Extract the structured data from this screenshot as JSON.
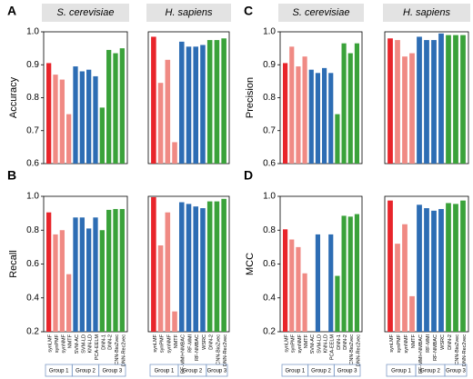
{
  "chart_data": [
    {
      "type": "bar",
      "panel": "A",
      "title": "S. cerevisiae",
      "ylabel": "Accuracy",
      "values": [
        0.905,
        0.87,
        0.855,
        0.75,
        0.895,
        0.88,
        0.885,
        0.865,
        0.77,
        0.945,
        0.935,
        0.95
      ],
      "colors": [
        "#e8252b",
        "#f08a84",
        "#f08a84",
        "#f08a84",
        "#2d6db4",
        "#2d6db4",
        "#2d6db4",
        "#2d6db4",
        "#3aa23a",
        "#3aa23a",
        "#3aa23a",
        "#3aa23a"
      ],
      "ylim": [
        0.6,
        1.0
      ],
      "yticks": [
        0.6,
        0.7,
        0.8,
        0.9,
        {
          "value": 1.0,
          "label": "1.0"
        }
      ]
    },
    {
      "type": "bar",
      "title": "H. sapiens",
      "values": [
        0.985,
        0.845,
        0.915,
        0.665,
        0.97,
        0.955,
        0.955,
        0.96,
        0.975,
        0.975,
        0.98
      ],
      "colors": [
        "#e8252b",
        "#f08a84",
        "#f08a84",
        "#f08a84",
        "#2d6db4",
        "#2d6db4",
        "#2d6db4",
        "#2d6db4",
        "#3aa23a",
        "#3aa23a",
        "#3aa23a"
      ],
      "ylim": [
        0.6,
        1.0
      ]
    },
    {
      "type": "bar",
      "panel": "C",
      "title": "S. cerevisiae",
      "ylabel": "Precision",
      "values": [
        0.905,
        0.955,
        0.895,
        0.925,
        0.885,
        0.875,
        0.89,
        0.875,
        0.75,
        0.965,
        0.935,
        0.965
      ],
      "colors": [
        "#e8252b",
        "#f08a84",
        "#f08a84",
        "#f08a84",
        "#2d6db4",
        "#2d6db4",
        "#2d6db4",
        "#2d6db4",
        "#3aa23a",
        "#3aa23a",
        "#3aa23a",
        "#3aa23a"
      ],
      "ylim": [
        0.6,
        1.0
      ],
      "yticks": [
        0.6,
        0.7,
        0.8,
        0.9,
        {
          "value": 1.0,
          "label": "1.0"
        }
      ]
    },
    {
      "type": "bar",
      "title": "H. sapiens",
      "values": [
        0.98,
        0.975,
        0.925,
        0.935,
        0.985,
        0.975,
        0.975,
        0.995,
        0.99,
        0.99,
        0.99
      ],
      "colors": [
        "#e8252b",
        "#f08a84",
        "#f08a84",
        "#f08a84",
        "#2d6db4",
        "#2d6db4",
        "#2d6db4",
        "#2d6db4",
        "#3aa23a",
        "#3aa23a",
        "#3aa23a"
      ],
      "ylim": [
        0.6,
        1.0
      ]
    },
    {
      "type": "bar",
      "panel": "B",
      "ylabel": "Recall",
      "categories": [
        "synLMF",
        "synPMF",
        "synNMF",
        "NMTF",
        "SVM-AC",
        "SVM-LD",
        "KNN-LD",
        "PCA-EELM",
        "DNN-1",
        "DNN-2",
        "CNN-BioZvec",
        "DNN-Rec2vec"
      ],
      "values": [
        0.905,
        0.775,
        0.8,
        0.54,
        0.875,
        0.875,
        0.81,
        0.875,
        0.8,
        0.92,
        0.925,
        0.925
      ],
      "colors": [
        "#e8252b",
        "#f08a84",
        "#f08a84",
        "#f08a84",
        "#2d6db4",
        "#2d6db4",
        "#2d6db4",
        "#2d6db4",
        "#3aa23a",
        "#3aa23a",
        "#3aa23a",
        "#3aa23a"
      ],
      "group_labels": [
        "Group 1",
        "Group 2",
        "Group 3"
      ],
      "ylim": [
        0.2,
        1.0
      ],
      "yticks": [
        0.2,
        0.4,
        0.6,
        0.8,
        {
          "value": 1.0,
          "label": "1.0"
        }
      ]
    },
    {
      "type": "bar",
      "categories": [
        "synLMF",
        "synPMF",
        "synNMF",
        "NMTF",
        "RF-MMI+NMBAC",
        "RF-MMI",
        "RF-NMBAC",
        "WSRC",
        "DNN-2",
        "CNN-BioZvec",
        "DNN-Rec2vec"
      ],
      "values": [
        0.995,
        0.71,
        0.905,
        0.32,
        0.965,
        0.955,
        0.94,
        0.93,
        0.97,
        0.97,
        0.985
      ],
      "colors": [
        "#e8252b",
        "#f08a84",
        "#f08a84",
        "#f08a84",
        "#2d6db4",
        "#2d6db4",
        "#2d6db4",
        "#2d6db4",
        "#3aa23a",
        "#3aa23a",
        "#3aa23a"
      ],
      "group_labels": [
        "Group 1",
        "Group 2",
        "Group 3"
      ],
      "ylim": [
        0.2,
        1.0
      ]
    },
    {
      "type": "bar",
      "panel": "D",
      "ylabel": "MCC",
      "categories": [
        "synLMF",
        "synPMF",
        "synNMF",
        "NMTF",
        "SVM-AC",
        "SVM-LD",
        "KNN-LD",
        "PCA-EELM",
        "DNN-1",
        "DNN-2",
        "CNN-BioZvec",
        "DNN-Rec2vec"
      ],
      "values": [
        0.805,
        0.745,
        0.7,
        0.545,
        null,
        0.775,
        null,
        0.775,
        0.53,
        0.885,
        0.88,
        0.895
      ],
      "colors": [
        "#e8252b",
        "#f08a84",
        "#f08a84",
        "#f08a84",
        "#2d6db4",
        "#2d6db4",
        "#2d6db4",
        "#2d6db4",
        "#3aa23a",
        "#3aa23a",
        "#3aa23a",
        "#3aa23a"
      ],
      "group_labels": [
        "Group 1",
        "Group 2",
        "Group 3"
      ],
      "ylim": [
        0.2,
        1.0
      ],
      "yticks": [
        0.2,
        0.4,
        0.6,
        0.8,
        {
          "value": 1.0,
          "label": "1.0"
        }
      ]
    },
    {
      "type": "bar",
      "categories": [
        "synLMF",
        "synPMF",
        "synNMF",
        "NMTF",
        "RF-MMI+NMBAC",
        "RF-MMI",
        "RF-NMBAC",
        "WSRC",
        "DNN-2",
        "CNN-BioZvec",
        "DNN-Rec2vec"
      ],
      "values": [
        0.975,
        0.72,
        0.835,
        0.41,
        0.95,
        0.93,
        0.915,
        0.925,
        0.96,
        0.955,
        0.975
      ],
      "colors": [
        "#e8252b",
        "#f08a84",
        "#f08a84",
        "#f08a84",
        "#2d6db4",
        "#2d6db4",
        "#2d6db4",
        "#2d6db4",
        "#3aa23a",
        "#3aa23a",
        "#3aa23a"
      ],
      "group_labels": [
        "Group 1",
        "Group 2",
        "Group 3"
      ],
      "ylim": [
        0.2,
        1.0
      ]
    }
  ]
}
